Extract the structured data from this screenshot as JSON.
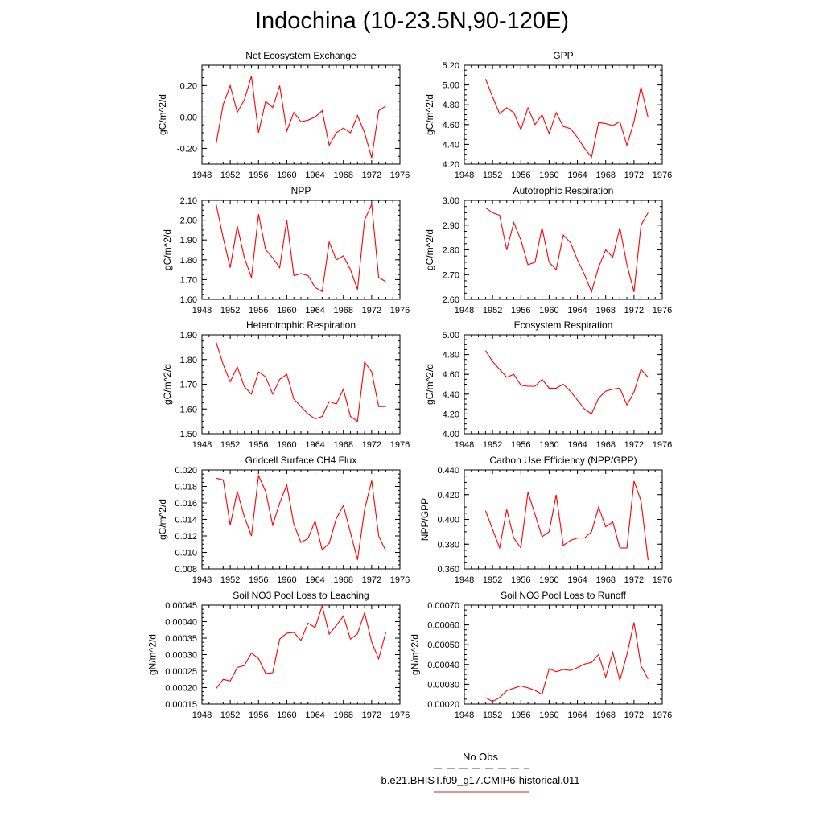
{
  "title": "Indochina (10-23.5N,90-120E)",
  "legend": {
    "no_obs_label": "No Obs",
    "no_obs_color": "#3a3ae0",
    "run_label": "b.e21.BHIST.f09_g17.CMIP6-historical.011",
    "run_color": "#e0191b"
  },
  "line_color": "#ff0000",
  "chart_data": [
    {
      "type": "line",
      "title": "Net Ecosystem Exchange",
      "ylabel": "gC/m^2/d",
      "xlim": [
        1948,
        1976
      ],
      "xticks": [
        "1948",
        "1952",
        "1956",
        "1960",
        "1964",
        "1968",
        "1972",
        "1976"
      ],
      "ylim": [
        -0.3,
        0.33
      ],
      "yticks": [
        "-0.20",
        "0.00",
        "0.20"
      ],
      "ytick_values": [
        -0.2,
        0.0,
        0.2
      ],
      "x": [
        1950,
        1951,
        1952,
        1953,
        1954,
        1955,
        1956,
        1957,
        1958,
        1959,
        1960,
        1961,
        1962,
        1963,
        1964,
        1965,
        1966,
        1967,
        1968,
        1969,
        1970,
        1971,
        1972,
        1973,
        1974
      ],
      "values": [
        -0.17,
        0.08,
        0.2,
        0.03,
        0.11,
        0.26,
        -0.1,
        0.1,
        0.06,
        0.2,
        -0.09,
        0.03,
        -0.03,
        -0.02,
        0.0,
        0.04,
        -0.18,
        -0.1,
        -0.07,
        -0.1,
        0.01,
        -0.1,
        -0.26,
        0.04,
        0.07
      ]
    },
    {
      "type": "line",
      "title": "GPP",
      "ylabel": "gC/m^2/d",
      "xlim": [
        1948,
        1976
      ],
      "xticks": [
        "1948",
        "1952",
        "1956",
        "1960",
        "1964",
        "1968",
        "1972",
        "1976"
      ],
      "ylim": [
        4.2,
        5.2
      ],
      "yticks": [
        "4.20",
        "4.40",
        "4.60",
        "4.80",
        "5.00",
        "5.20"
      ],
      "ytick_values": [
        4.2,
        4.4,
        4.6,
        4.8,
        5.0,
        5.2
      ],
      "x": [
        1951,
        1952,
        1953,
        1954,
        1955,
        1956,
        1957,
        1958,
        1959,
        1960,
        1961,
        1962,
        1963,
        1964,
        1965,
        1966,
        1967,
        1968,
        1969,
        1970,
        1971,
        1972,
        1973,
        1974
      ],
      "values": [
        5.06,
        4.88,
        4.71,
        4.77,
        4.72,
        4.55,
        4.77,
        4.6,
        4.7,
        4.51,
        4.72,
        4.58,
        4.56,
        4.47,
        4.36,
        4.27,
        4.62,
        4.61,
        4.59,
        4.63,
        4.39,
        4.63,
        4.98,
        4.67
      ]
    },
    {
      "type": "line",
      "title": "NPP",
      "ylabel": "gC/m^2/d",
      "xlim": [
        1948,
        1976
      ],
      "xticks": [
        "1948",
        "1952",
        "1956",
        "1960",
        "1964",
        "1968",
        "1972",
        "1976"
      ],
      "ylim": [
        1.6,
        2.1
      ],
      "yticks": [
        "1.60",
        "1.70",
        "1.80",
        "1.90",
        "2.00",
        "2.10"
      ],
      "ytick_values": [
        1.6,
        1.7,
        1.8,
        1.9,
        2.0,
        2.1
      ],
      "x": [
        1950,
        1951,
        1952,
        1953,
        1954,
        1955,
        1956,
        1957,
        1958,
        1959,
        1960,
        1961,
        1962,
        1963,
        1964,
        1965,
        1966,
        1967,
        1968,
        1969,
        1970,
        1971,
        1972,
        1973,
        1974
      ],
      "values": [
        2.08,
        1.91,
        1.76,
        1.97,
        1.81,
        1.71,
        2.03,
        1.85,
        1.81,
        1.76,
        2.0,
        1.72,
        1.73,
        1.72,
        1.66,
        1.64,
        1.89,
        1.8,
        1.82,
        1.75,
        1.65,
        2.0,
        2.08,
        1.71,
        1.69
      ]
    },
    {
      "type": "line",
      "title": "Autotrophic Respiration",
      "ylabel": "gC/m^2/d",
      "xlim": [
        1948,
        1976
      ],
      "xticks": [
        "1948",
        "1952",
        "1956",
        "1960",
        "1964",
        "1968",
        "1972",
        "1976"
      ],
      "ylim": [
        2.6,
        3.0
      ],
      "yticks": [
        "2.60",
        "2.70",
        "2.80",
        "2.90",
        "3.00"
      ],
      "ytick_values": [
        2.6,
        2.7,
        2.8,
        2.9,
        3.0
      ],
      "x": [
        1951,
        1952,
        1953,
        1954,
        1955,
        1956,
        1957,
        1958,
        1959,
        1960,
        1961,
        1962,
        1963,
        1964,
        1965,
        1966,
        1967,
        1968,
        1969,
        1970,
        1971,
        1972,
        1973,
        1974
      ],
      "values": [
        2.97,
        2.95,
        2.94,
        2.8,
        2.91,
        2.84,
        2.74,
        2.75,
        2.89,
        2.75,
        2.72,
        2.86,
        2.83,
        2.76,
        2.7,
        2.63,
        2.73,
        2.8,
        2.77,
        2.89,
        2.74,
        2.63,
        2.9,
        2.95
      ]
    },
    {
      "type": "line",
      "title": "Heterotrophic Respiration",
      "ylabel": "gC/m^2/d",
      "xlim": [
        1948,
        1976
      ],
      "xticks": [
        "1948",
        "1952",
        "1956",
        "1960",
        "1964",
        "1968",
        "1972",
        "1976"
      ],
      "ylim": [
        1.5,
        1.9
      ],
      "yticks": [
        "1.50",
        "1.60",
        "1.70",
        "1.80",
        "1.90"
      ],
      "ytick_values": [
        1.5,
        1.6,
        1.7,
        1.8,
        1.9
      ],
      "x": [
        1950,
        1951,
        1952,
        1953,
        1954,
        1955,
        1956,
        1957,
        1958,
        1959,
        1960,
        1961,
        1962,
        1963,
        1964,
        1965,
        1966,
        1967,
        1968,
        1969,
        1970,
        1971,
        1972,
        1973,
        1974
      ],
      "values": [
        1.87,
        1.78,
        1.71,
        1.77,
        1.69,
        1.66,
        1.75,
        1.73,
        1.66,
        1.72,
        1.74,
        1.64,
        1.61,
        1.58,
        1.56,
        1.57,
        1.63,
        1.62,
        1.68,
        1.57,
        1.55,
        1.79,
        1.75,
        1.61,
        1.61
      ]
    },
    {
      "type": "line",
      "title": "Ecosystem Respiration",
      "ylabel": "gC/m^2/d",
      "xlim": [
        1948,
        1976
      ],
      "xticks": [
        "1948",
        "1952",
        "1956",
        "1960",
        "1964",
        "1968",
        "1972",
        "1976"
      ],
      "ylim": [
        4.0,
        5.0
      ],
      "yticks": [
        "4.00",
        "4.20",
        "4.40",
        "4.60",
        "4.80",
        "5.00"
      ],
      "ytick_values": [
        4.0,
        4.2,
        4.4,
        4.6,
        4.8,
        5.0
      ],
      "x": [
        1951,
        1952,
        1953,
        1954,
        1955,
        1956,
        1957,
        1958,
        1959,
        1960,
        1961,
        1962,
        1963,
        1964,
        1965,
        1966,
        1967,
        1968,
        1969,
        1970,
        1971,
        1972,
        1973,
        1974
      ],
      "values": [
        4.84,
        4.73,
        4.65,
        4.57,
        4.6,
        4.49,
        4.48,
        4.48,
        4.55,
        4.46,
        4.46,
        4.5,
        4.43,
        4.34,
        4.25,
        4.2,
        4.36,
        4.43,
        4.45,
        4.46,
        4.29,
        4.42,
        4.65,
        4.57
      ]
    },
    {
      "type": "line",
      "title": "Gridcell Surface CH4 Flux",
      "ylabel": "gC/m^2/d",
      "xlim": [
        1948,
        1976
      ],
      "xticks": [
        "1948",
        "1952",
        "1956",
        "1960",
        "1964",
        "1968",
        "1972",
        "1976"
      ],
      "ylim": [
        0.008,
        0.02
      ],
      "yticks": [
        "0.008",
        "0.010",
        "0.012",
        "0.014",
        "0.016",
        "0.018",
        "0.020"
      ],
      "ytick_values": [
        0.008,
        0.01,
        0.012,
        0.014,
        0.016,
        0.018,
        0.02
      ],
      "x": [
        1950,
        1951,
        1952,
        1953,
        1954,
        1955,
        1956,
        1957,
        1958,
        1959,
        1960,
        1961,
        1962,
        1963,
        1964,
        1965,
        1966,
        1967,
        1968,
        1969,
        1970,
        1971,
        1972,
        1973,
        1974
      ],
      "values": [
        0.019,
        0.0188,
        0.0133,
        0.0174,
        0.0143,
        0.012,
        0.0193,
        0.0174,
        0.0133,
        0.016,
        0.0182,
        0.0134,
        0.0112,
        0.0117,
        0.0138,
        0.0103,
        0.0111,
        0.0141,
        0.0157,
        0.0124,
        0.0091,
        0.0152,
        0.0187,
        0.012,
        0.0102
      ]
    },
    {
      "type": "line",
      "title": "Carbon Use Efficiency (NPP/GPP)",
      "ylabel": "NPP/GPP",
      "xlim": [
        1948,
        1976
      ],
      "xticks": [
        "1948",
        "1952",
        "1956",
        "1960",
        "1964",
        "1968",
        "1972",
        "1976"
      ],
      "ylim": [
        0.36,
        0.44
      ],
      "yticks": [
        "0.360",
        "0.380",
        "0.400",
        "0.420",
        "0.440"
      ],
      "ytick_values": [
        0.36,
        0.38,
        0.4,
        0.42,
        0.44
      ],
      "x": [
        1951,
        1952,
        1953,
        1954,
        1955,
        1956,
        1957,
        1958,
        1959,
        1960,
        1961,
        1962,
        1963,
        1964,
        1965,
        1966,
        1967,
        1968,
        1969,
        1970,
        1971,
        1972,
        1973,
        1974
      ],
      "values": [
        0.407,
        0.392,
        0.377,
        0.408,
        0.385,
        0.377,
        0.422,
        0.404,
        0.386,
        0.39,
        0.42,
        0.379,
        0.383,
        0.385,
        0.385,
        0.39,
        0.41,
        0.394,
        0.398,
        0.377,
        0.377,
        0.431,
        0.415,
        0.367
      ]
    },
    {
      "type": "line",
      "title": "Soil NO3 Pool Loss to Leaching",
      "ylabel": "gN/m^2/d",
      "xlim": [
        1948,
        1976
      ],
      "xticks": [
        "1948",
        "1952",
        "1956",
        "1960",
        "1964",
        "1968",
        "1972",
        "1976"
      ],
      "ylim": [
        0.00015,
        0.00045
      ],
      "yticks": [
        "0.00015",
        "0.00020",
        "0.00025",
        "0.00030",
        "0.00035",
        "0.00040",
        "0.00045"
      ],
      "ytick_values": [
        0.00015,
        0.0002,
        0.00025,
        0.0003,
        0.00035,
        0.0004,
        0.00045
      ],
      "x": [
        1950,
        1951,
        1952,
        1953,
        1954,
        1955,
        1956,
        1957,
        1958,
        1959,
        1960,
        1961,
        1962,
        1963,
        1964,
        1965,
        1966,
        1967,
        1968,
        1969,
        1970,
        1971,
        1972,
        1973,
        1974
      ],
      "values": [
        0.000197,
        0.000225,
        0.00022,
        0.000261,
        0.000267,
        0.000305,
        0.000288,
        0.000243,
        0.000245,
        0.000347,
        0.000365,
        0.000367,
        0.000343,
        0.000395,
        0.000382,
        0.000448,
        0.000362,
        0.000388,
        0.000417,
        0.000347,
        0.000363,
        0.000427,
        0.000338,
        0.000287,
        0.000367
      ]
    },
    {
      "type": "line",
      "title": "Soil NO3 Pool Loss to Runoff",
      "ylabel": "gN/m^2/d",
      "xlim": [
        1948,
        1976
      ],
      "xticks": [
        "1948",
        "1952",
        "1956",
        "1960",
        "1964",
        "1968",
        "1972",
        "1976"
      ],
      "ylim": [
        0.0002,
        0.0007
      ],
      "yticks": [
        "0.00020",
        "0.00030",
        "0.00040",
        "0.00050",
        "0.00060",
        "0.00070"
      ],
      "ytick_values": [
        0.0002,
        0.0003,
        0.0004,
        0.0005,
        0.0006,
        0.0007
      ],
      "x": [
        1951,
        1952,
        1953,
        1954,
        1955,
        1956,
        1957,
        1958,
        1959,
        1960,
        1961,
        1962,
        1963,
        1964,
        1965,
        1966,
        1967,
        1968,
        1969,
        1970,
        1971,
        1972,
        1973,
        1974
      ],
      "values": [
        0.000233,
        0.000213,
        0.000233,
        0.000268,
        0.00028,
        0.000292,
        0.000282,
        0.000269,
        0.000249,
        0.000379,
        0.000364,
        0.000375,
        0.00037,
        0.000384,
        0.000402,
        0.00041,
        0.000451,
        0.000336,
        0.000461,
        0.00032,
        0.00045,
        0.000612,
        0.000393,
        0.000327
      ]
    }
  ]
}
